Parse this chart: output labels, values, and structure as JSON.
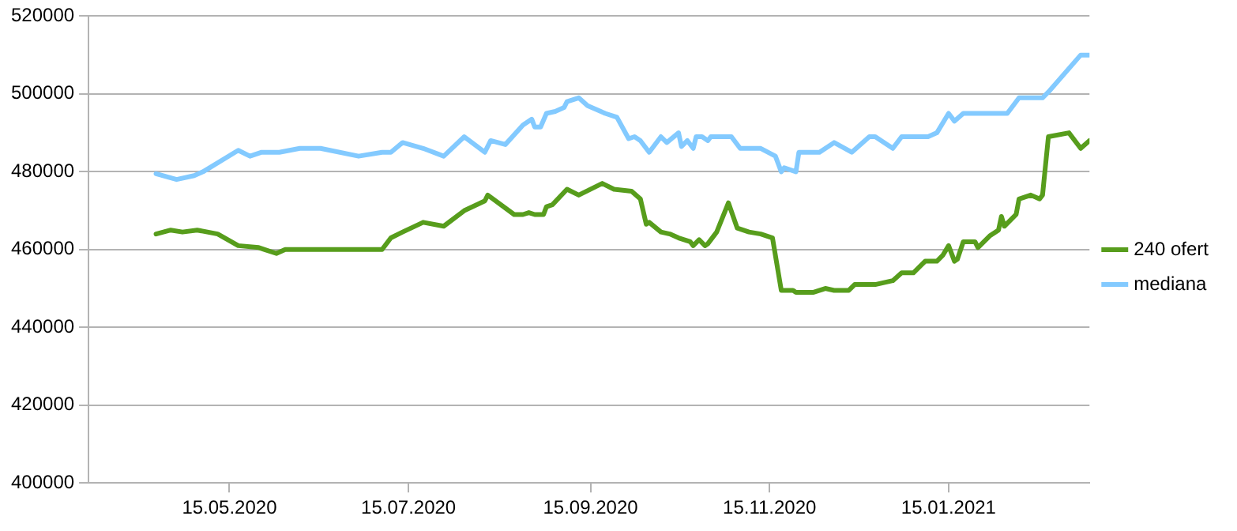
{
  "chart_data": {
    "type": "line",
    "xlim": [
      "2020-03-28",
      "2021-03-04"
    ],
    "xticks": [
      {
        "value": "2020-05-15",
        "label": "15.05.2020"
      },
      {
        "value": "2020-07-15",
        "label": "15.07.2020"
      },
      {
        "value": "2020-09-15",
        "label": "15.09.2020"
      },
      {
        "value": "2020-11-15",
        "label": "15.11.2020"
      },
      {
        "value": "2021-01-15",
        "label": "15.01.2021"
      }
    ],
    "ylim": [
      400000,
      520000
    ],
    "yticks": [
      400000,
      420000,
      440000,
      460000,
      480000,
      500000,
      520000
    ],
    "grid": "y",
    "legend": "right",
    "marker": "none",
    "line_style": "solid",
    "series": [
      {
        "name": "240 ofert",
        "color": "#579d1c",
        "x": [
          "2020-04-20",
          "2020-04-25",
          "2020-04-29",
          "2020-05-04",
          "2020-05-11",
          "2020-05-18",
          "2020-05-25",
          "2020-05-27",
          "2020-05-31",
          "2020-06-03",
          "2020-06-15",
          "2020-07-06",
          "2020-07-09",
          "2020-07-13",
          "2020-07-20",
          "2020-07-27",
          "2020-08-03",
          "2020-08-10",
          "2020-08-11",
          "2020-08-20",
          "2020-08-23",
          "2020-08-25",
          "2020-08-27",
          "2020-08-30",
          "2020-08-31",
          "2020-09-02",
          "2020-09-07",
          "2020-09-11",
          "2020-09-19",
          "2020-09-23",
          "2020-09-29",
          "2020-10-02",
          "2020-10-04",
          "2020-10-05",
          "2020-10-09",
          "2020-10-12",
          "2020-10-15",
          "2020-10-19",
          "2020-10-20",
          "2020-10-22",
          "2020-10-24",
          "2020-10-25",
          "2020-10-28",
          "2020-11-01",
          "2020-11-04",
          "2020-11-08",
          "2020-11-12",
          "2020-11-16",
          "2020-11-19",
          "2020-11-20",
          "2020-11-23",
          "2020-11-24",
          "2020-11-30",
          "2020-12-04",
          "2020-12-07",
          "2020-12-12",
          "2020-12-14",
          "2020-12-21",
          "2020-12-27",
          "2020-12-30",
          "2021-01-03",
          "2021-01-07",
          "2021-01-11",
          "2021-01-13",
          "2021-01-15",
          "2021-01-17",
          "2021-01-18",
          "2021-01-20",
          "2021-01-24",
          "2021-01-25",
          "2021-01-29",
          "2021-02-01",
          "2021-02-02",
          "2021-02-03",
          "2021-02-07",
          "2021-02-08",
          "2021-02-12",
          "2021-02-15",
          "2021-02-16",
          "2021-02-18",
          "2021-02-25",
          "2021-03-01",
          "2021-03-04"
        ],
        "values": [
          464000,
          465000,
          464500,
          465000,
          464000,
          461000,
          460500,
          460000,
          459000,
          460000,
          460000,
          460000,
          463000,
          464500,
          467000,
          466000,
          470000,
          472500,
          474000,
          469000,
          469000,
          469500,
          469000,
          469000,
          471000,
          471500,
          475500,
          474000,
          477000,
          475500,
          475000,
          473000,
          466500,
          467000,
          464500,
          464000,
          463000,
          462000,
          461000,
          462500,
          461000,
          461500,
          464500,
          472000,
          465500,
          464500,
          464000,
          463000,
          449500,
          449500,
          449500,
          449000,
          449000,
          450000,
          449500,
          449500,
          451000,
          451000,
          452000,
          454000,
          454000,
          457000,
          457000,
          458500,
          461000,
          457000,
          457500,
          462000,
          462000,
          460500,
          463500,
          465000,
          468500,
          466000,
          469000,
          473000,
          474000,
          473000,
          474000,
          489000,
          490000,
          486000,
          488000
        ]
      },
      {
        "name": "mediana",
        "color": "#83caff",
        "x": [
          "2020-04-20",
          "2020-04-27",
          "2020-05-03",
          "2020-05-06",
          "2020-05-18",
          "2020-05-22",
          "2020-05-26",
          "2020-06-01",
          "2020-06-08",
          "2020-06-15",
          "2020-06-28",
          "2020-07-06",
          "2020-07-09",
          "2020-07-13",
          "2020-07-20",
          "2020-07-27",
          "2020-08-03",
          "2020-08-10",
          "2020-08-12",
          "2020-08-17",
          "2020-08-23",
          "2020-08-26",
          "2020-08-27",
          "2020-08-29",
          "2020-08-31",
          "2020-09-03",
          "2020-09-06",
          "2020-09-07",
          "2020-09-11",
          "2020-09-14",
          "2020-09-20",
          "2020-09-24",
          "2020-09-28",
          "2020-09-30",
          "2020-10-02",
          "2020-10-05",
          "2020-10-09",
          "2020-10-11",
          "2020-10-15",
          "2020-10-16",
          "2020-10-18",
          "2020-10-20",
          "2020-10-21",
          "2020-10-23",
          "2020-10-25",
          "2020-10-26",
          "2020-11-02",
          "2020-11-05",
          "2020-11-12",
          "2020-11-17",
          "2020-11-19",
          "2020-11-20",
          "2020-11-24",
          "2020-11-25",
          "2020-12-02",
          "2020-12-07",
          "2020-12-13",
          "2020-12-19",
          "2020-12-21",
          "2020-12-27",
          "2020-12-30",
          "2021-01-08",
          "2021-01-11",
          "2021-01-15",
          "2021-01-17",
          "2021-01-20",
          "2021-02-04",
          "2021-02-08",
          "2021-02-16",
          "2021-02-18",
          "2021-03-01",
          "2021-03-04"
        ],
        "values": [
          479500,
          478000,
          479000,
          480000,
          485500,
          484000,
          485000,
          485000,
          486000,
          486000,
          484000,
          485000,
          485000,
          487500,
          486000,
          484000,
          489000,
          485000,
          488000,
          487000,
          492000,
          493500,
          491500,
          491500,
          495000,
          495500,
          496500,
          498000,
          499000,
          497000,
          495000,
          494000,
          488500,
          489000,
          488000,
          485000,
          489000,
          487500,
          490000,
          486500,
          488000,
          486000,
          489000,
          489000,
          488000,
          489000,
          489000,
          486000,
          486000,
          484000,
          480000,
          481000,
          480000,
          485000,
          485000,
          487500,
          485000,
          489000,
          489000,
          486000,
          489000,
          489000,
          490000,
          495000,
          493000,
          495000,
          495000,
          499000,
          499000,
          500500,
          510000,
          510000
        ]
      }
    ]
  }
}
